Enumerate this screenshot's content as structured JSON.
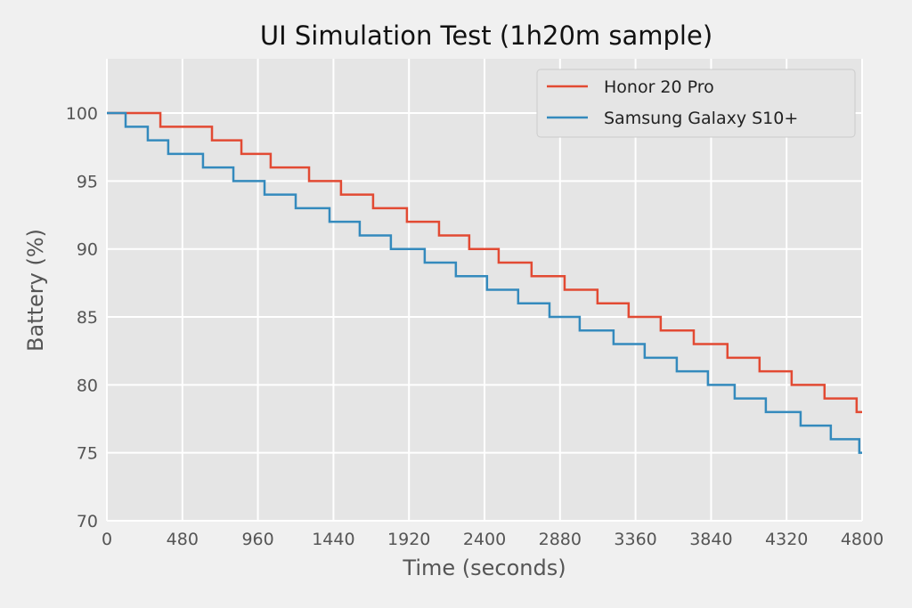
{
  "chart_data": {
    "type": "line",
    "step": true,
    "title": "UI Simulation Test (1h20m sample)",
    "xlabel": "Time (seconds)",
    "ylabel": "Battery (%)",
    "xlim": [
      0,
      4800
    ],
    "ylim": [
      70,
      104
    ],
    "xticks": [
      0,
      480,
      960,
      1440,
      1920,
      2400,
      2880,
      3360,
      3840,
      4320,
      4800
    ],
    "yticks": [
      70,
      75,
      80,
      85,
      90,
      95,
      100
    ],
    "grid": true,
    "legend_position": "top-right",
    "series": [
      {
        "name": "Honor 20 Pro",
        "color": "#E24A33",
        "points": [
          [
            0,
            100
          ],
          [
            340,
            99
          ],
          [
            668,
            98
          ],
          [
            855,
            97
          ],
          [
            1041,
            96
          ],
          [
            1285,
            95
          ],
          [
            1488,
            94
          ],
          [
            1692,
            93
          ],
          [
            1907,
            92
          ],
          [
            2111,
            91
          ],
          [
            2303,
            90
          ],
          [
            2490,
            89
          ],
          [
            2699,
            88
          ],
          [
            2909,
            87
          ],
          [
            3118,
            86
          ],
          [
            3316,
            85
          ],
          [
            3520,
            84
          ],
          [
            3730,
            83
          ],
          [
            3944,
            82
          ],
          [
            4148,
            81
          ],
          [
            4352,
            80
          ],
          [
            4561,
            79
          ],
          [
            4765,
            78
          ],
          [
            4800,
            78
          ]
        ]
      },
      {
        "name": "Samsung Galaxy S10+",
        "color": "#348ABD",
        "points": [
          [
            0,
            100
          ],
          [
            119,
            99
          ],
          [
            260,
            98
          ],
          [
            390,
            97
          ],
          [
            611,
            96
          ],
          [
            804,
            95
          ],
          [
            1002,
            94
          ],
          [
            1200,
            93
          ],
          [
            1415,
            92
          ],
          [
            1607,
            91
          ],
          [
            1805,
            90
          ],
          [
            2020,
            89
          ],
          [
            2218,
            88
          ],
          [
            2416,
            87
          ],
          [
            2614,
            86
          ],
          [
            2813,
            85
          ],
          [
            3005,
            84
          ],
          [
            3220,
            83
          ],
          [
            3418,
            82
          ],
          [
            3622,
            81
          ],
          [
            3820,
            80
          ],
          [
            3990,
            79
          ],
          [
            4188,
            78
          ],
          [
            4409,
            77
          ],
          [
            4601,
            76
          ],
          [
            4782,
            75
          ],
          [
            4800,
            75
          ]
        ]
      }
    ]
  }
}
